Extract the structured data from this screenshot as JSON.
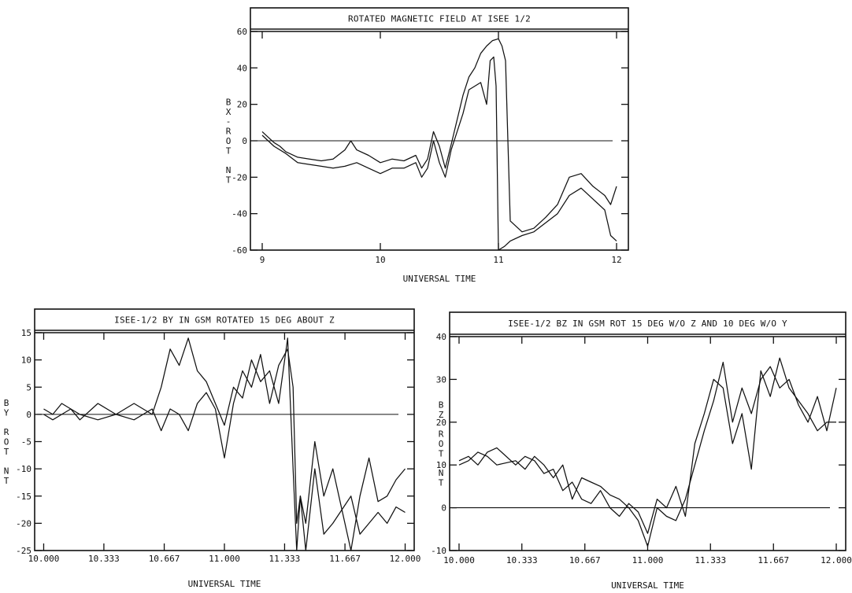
{
  "chart_data": [
    {
      "type": "line",
      "title": "ROTATED MAGNETIC FIELD AT ISEE 1/2",
      "xlabel": "UNIVERSAL TIME",
      "ylabel": "BX-ROT NT",
      "ylabel_chars": [
        "B",
        "X",
        "-",
        "R",
        "O",
        "T",
        "",
        "N",
        "T"
      ],
      "xlim": [
        8.9,
        12.1
      ],
      "ylim": [
        -60,
        60
      ],
      "xticks": [
        9,
        10,
        11,
        12
      ],
      "xtick_labels": [
        "9",
        "10",
        "11",
        "12"
      ],
      "yticks": [
        -60,
        -40,
        -20,
        0,
        20,
        40,
        60
      ],
      "ytick_labels": [
        "-60",
        "-40",
        "-20",
        "0",
        "20",
        "40",
        "60"
      ],
      "zero_line": true,
      "series": [
        {
          "x": [
            9.0,
            9.05,
            9.1,
            9.15,
            9.2,
            9.3,
            9.4,
            9.5,
            9.6,
            9.7,
            9.75,
            9.8,
            9.9,
            10.0,
            10.1,
            10.2,
            10.3,
            10.35,
            10.4,
            10.45,
            10.5,
            10.55,
            10.6,
            10.7,
            10.75,
            10.8,
            10.85,
            10.9,
            10.95,
            11.0,
            11.03,
            11.06,
            11.1,
            11.2,
            11.3,
            11.4,
            11.5,
            11.6,
            11.7,
            11.8,
            11.9,
            11.95,
            12.0
          ],
          "values": [
            5,
            2,
            -1,
            -3,
            -6,
            -9,
            -10,
            -11,
            -10,
            -5,
            0,
            -5,
            -8,
            -12,
            -10,
            -11,
            -8,
            -15,
            -10,
            5,
            -3,
            -15,
            -2,
            25,
            35,
            40,
            48,
            52,
            55,
            56,
            52,
            44,
            -44,
            -50,
            -48,
            -42,
            -35,
            -20,
            -18,
            -25,
            -30,
            -35,
            -25
          ]
        },
        {
          "x": [
            9.0,
            9.1,
            9.2,
            9.3,
            9.4,
            9.5,
            9.6,
            9.7,
            9.8,
            9.9,
            10.0,
            10.1,
            10.2,
            10.3,
            10.35,
            10.4,
            10.45,
            10.5,
            10.55,
            10.6,
            10.7,
            10.75,
            10.8,
            10.85,
            10.9,
            10.93,
            10.96,
            10.98,
            11.0,
            11.05,
            11.1,
            11.2,
            11.3,
            11.4,
            11.5,
            11.6,
            11.7,
            11.8,
            11.9,
            11.95,
            12.0
          ],
          "values": [
            3,
            -3,
            -7,
            -12,
            -13,
            -14,
            -15,
            -14,
            -12,
            -15,
            -18,
            -15,
            -15,
            -12,
            -20,
            -15,
            0,
            -12,
            -20,
            -5,
            15,
            28,
            30,
            32,
            20,
            44,
            46,
            30,
            -60,
            -58,
            -55,
            -52,
            -50,
            -45,
            -40,
            -30,
            -26,
            -32,
            -38,
            -52,
            -55
          ]
        }
      ]
    },
    {
      "type": "line",
      "title": "ISEE-1/2 BY IN GSM ROTATED 15 DEG ABOUT Z",
      "xlabel": "UNIVERSAL TIME",
      "ylabel": "BY ROT NT",
      "ylabel_chars": [
        "B",
        "Y",
        "",
        "R",
        "O",
        "T",
        "",
        "N",
        "T"
      ],
      "xlim": [
        9.95,
        12.05
      ],
      "ylim": [
        -25,
        15
      ],
      "xticks": [
        10.0,
        10.333,
        10.667,
        11.0,
        11.333,
        11.667,
        12.0
      ],
      "xtick_labels": [
        "10.000",
        "10.333",
        "10.667",
        "11.000",
        "11.333",
        "11.667",
        "12.000"
      ],
      "yticks": [
        -25,
        -20,
        -15,
        -10,
        -5,
        0,
        5,
        10,
        15
      ],
      "ytick_labels": [
        "-25",
        "-20",
        "-15",
        "-10",
        "-5",
        "0",
        "5",
        "10",
        "15"
      ],
      "zero_line": true,
      "series": [
        {
          "x": [
            10.0,
            10.05,
            10.1,
            10.15,
            10.2,
            10.3,
            10.4,
            10.5,
            10.6,
            10.65,
            10.7,
            10.75,
            10.8,
            10.85,
            10.9,
            10.95,
            11.0,
            11.05,
            11.1,
            11.15,
            11.2,
            11.25,
            11.3,
            11.35,
            11.38,
            11.4,
            11.42,
            11.45,
            11.5,
            11.55,
            11.6,
            11.7,
            11.75,
            11.8,
            11.85,
            11.9,
            11.95,
            12.0
          ],
          "values": [
            1,
            0,
            2,
            1,
            -1,
            2,
            0,
            2,
            0,
            5,
            12,
            9,
            14,
            8,
            6,
            2,
            -2,
            5,
            3,
            10,
            6,
            8,
            2,
            14,
            -10,
            -25,
            -15,
            -20,
            -5,
            -15,
            -10,
            -25,
            -15,
            -8,
            -16,
            -15,
            -12,
            -10
          ]
        },
        {
          "x": [
            10.0,
            10.05,
            10.1,
            10.15,
            10.2,
            10.3,
            10.4,
            10.5,
            10.6,
            10.65,
            10.7,
            10.75,
            10.8,
            10.85,
            10.9,
            10.95,
            11.0,
            11.05,
            11.1,
            11.15,
            11.2,
            11.25,
            11.3,
            11.35,
            11.38,
            11.4,
            11.42,
            11.45,
            11.5,
            11.55,
            11.6,
            11.7,
            11.75,
            11.8,
            11.85,
            11.9,
            11.95,
            12.0
          ],
          "values": [
            0,
            -1,
            0,
            1,
            0,
            -1,
            0,
            -1,
            1,
            -3,
            1,
            0,
            -3,
            2,
            4,
            1,
            -8,
            2,
            8,
            5,
            11,
            2,
            9,
            12,
            5,
            -20,
            -15,
            -25,
            -10,
            -22,
            -20,
            -15,
            -22,
            -20,
            -18,
            -20,
            -17,
            -18
          ]
        }
      ]
    },
    {
      "type": "line",
      "title": "ISEE-1/2 BZ IN GSM ROT 15 DEG W/O Z AND 10 DEG W/O Y",
      "xlabel": "UNIVERSAL TIME",
      "ylabel": "BZ ROT NT",
      "ylabel_chars": [
        "B",
        "Z",
        "",
        "R",
        "O",
        "T",
        "",
        "N",
        "T"
      ],
      "xlim": [
        9.95,
        12.05
      ],
      "ylim": [
        -10,
        40
      ],
      "xticks": [
        10.0,
        10.333,
        10.667,
        11.0,
        11.333,
        11.667,
        12.0
      ],
      "xtick_labels": [
        "10.000",
        "10.333",
        "10.667",
        "11.000",
        "11.333",
        "11.667",
        "12.000"
      ],
      "yticks": [
        -10,
        0,
        10,
        20,
        30,
        40
      ],
      "ytick_labels": [
        "-10",
        "0",
        "10",
        "20",
        "30",
        "40"
      ],
      "zero_line": true,
      "series": [
        {
          "x": [
            10.0,
            10.05,
            10.1,
            10.15,
            10.2,
            10.3,
            10.35,
            10.4,
            10.45,
            10.5,
            10.55,
            10.6,
            10.65,
            10.7,
            10.75,
            10.8,
            10.85,
            10.9,
            10.95,
            11.0,
            11.05,
            11.1,
            11.15,
            11.2,
            11.25,
            11.3,
            11.35,
            11.4,
            11.45,
            11.5,
            11.55,
            11.6,
            11.65,
            11.7,
            11.75,
            11.8,
            11.85,
            11.9,
            11.95,
            12.0
          ],
          "values": [
            11,
            12,
            10,
            13,
            14,
            10,
            12,
            11,
            8,
            9,
            4,
            6,
            2,
            1,
            4,
            0,
            -2,
            1,
            -1,
            -6,
            2,
            0,
            5,
            -2,
            15,
            22,
            30,
            28,
            15,
            22,
            9,
            32,
            26,
            35,
            28,
            25,
            22,
            18,
            20,
            20
          ]
        },
        {
          "x": [
            10.0,
            10.05,
            10.1,
            10.15,
            10.2,
            10.3,
            10.35,
            10.4,
            10.45,
            10.5,
            10.55,
            10.6,
            10.65,
            10.7,
            10.75,
            10.8,
            10.85,
            10.9,
            10.95,
            11.0,
            11.05,
            11.1,
            11.15,
            11.2,
            11.25,
            11.3,
            11.35,
            11.4,
            11.45,
            11.5,
            11.55,
            11.6,
            11.65,
            11.7,
            11.75,
            11.8,
            11.85,
            11.9,
            11.95,
            12.0
          ],
          "values": [
            10,
            11,
            13,
            12,
            10,
            11,
            9,
            12,
            10,
            7,
            10,
            2,
            7,
            6,
            5,
            3,
            2,
            0,
            -3,
            -9,
            0,
            -2,
            -3,
            2,
            10,
            18,
            25,
            34,
            20,
            28,
            22,
            30,
            33,
            28,
            30,
            24,
            20,
            26,
            18,
            28
          ]
        }
      ]
    }
  ]
}
